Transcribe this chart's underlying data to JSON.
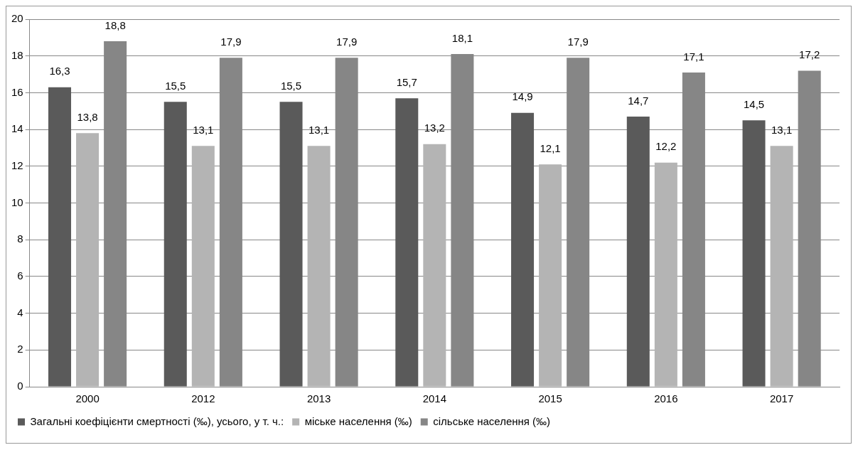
{
  "chart_data": {
    "type": "bar",
    "categories": [
      "2000",
      "2012",
      "2013",
      "2014",
      "2015",
      "2016",
      "2017"
    ],
    "series": [
      {
        "name": "Загальні коефіцієнти смертності (‰), усього, у т. ч.:",
        "color": "#5a5a5a",
        "values": [
          16.3,
          15.5,
          15.5,
          15.7,
          14.9,
          14.7,
          14.5
        ],
        "value_labels": [
          "16,3",
          "15,5",
          "15,5",
          "15,7",
          "14,9",
          "14,7",
          "14,5"
        ]
      },
      {
        "name": "міське населення (‰)",
        "color": "#b4b4b4",
        "values": [
          13.8,
          13.1,
          13.1,
          13.2,
          12.1,
          12.2,
          13.1
        ],
        "value_labels": [
          "13,8",
          "13,1",
          "13,1",
          "13,2",
          "12,1",
          "12,2",
          "13,1"
        ]
      },
      {
        "name": "сільське населення (‰)",
        "color": "#868686",
        "values": [
          18.8,
          17.9,
          17.9,
          18.1,
          17.9,
          17.1,
          17.2
        ],
        "value_labels": [
          "18,8",
          "17,9",
          "17,9",
          "18,1",
          "17,9",
          "17,1",
          "17,2"
        ]
      }
    ],
    "ylim": [
      0,
      20
    ],
    "yticks": [
      0,
      2,
      4,
      6,
      8,
      10,
      12,
      14,
      16,
      18,
      20
    ],
    "grid": "y",
    "legend": "bottom"
  }
}
